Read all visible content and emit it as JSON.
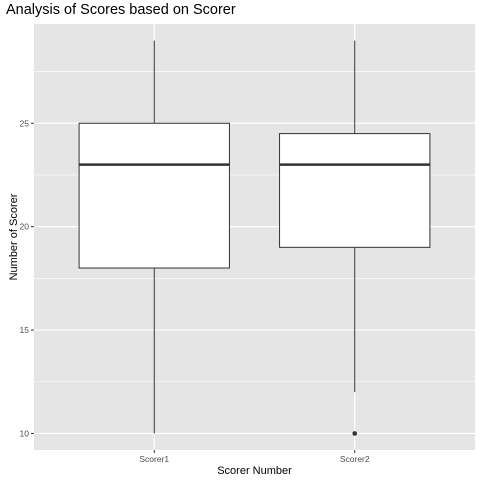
{
  "chart_data": {
    "type": "boxplot",
    "title": "Analysis of Scores based on Scorer",
    "xlabel": "Scorer Number",
    "ylabel": "Number of Scorer",
    "categories": [
      "Scorer1",
      "Scorer2"
    ],
    "ylim": [
      9.2,
      29.8
    ],
    "yticks": [
      10,
      15,
      20,
      25
    ],
    "grid": true,
    "boxes": [
      {
        "category": "Scorer1",
        "whisker_low": 10,
        "q1": 18,
        "median": 23,
        "q3": 25,
        "whisker_high": 29,
        "outliers": []
      },
      {
        "category": "Scorer2",
        "whisker_low": 12,
        "q1": 19,
        "median": 23,
        "q3": 24.5,
        "whisker_high": 29,
        "outliers": [
          10
        ]
      }
    ],
    "colors": {
      "panel_bg": "#e5e5e5",
      "grid": "#ffffff",
      "box_fill": "#ffffff",
      "box_stroke": "#333333",
      "text": "#4d4d4d"
    }
  }
}
